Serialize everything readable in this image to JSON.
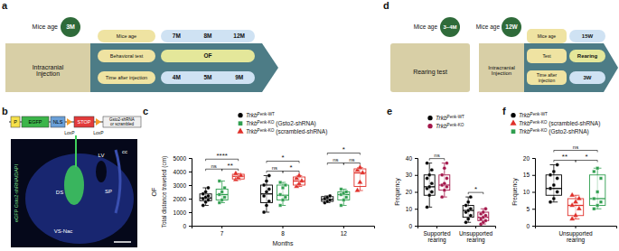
{
  "panel_labels": [
    "a",
    "b",
    "c",
    "d",
    "e",
    "f"
  ],
  "diagrams": {
    "a": {
      "start_label": "Mice age",
      "start_age": "3M",
      "injection": "Intracranial Injection",
      "rows": [
        {
          "label": "Mice age",
          "items": [
            "7M",
            "8M",
            "12M"
          ]
        },
        {
          "label": "Behavioral test",
          "items": [
            "OF"
          ]
        },
        {
          "label": "Time after injection",
          "items": [
            "4M",
            "5M",
            "9M"
          ]
        }
      ]
    },
    "b": {
      "construct": [
        "P",
        "EGFP",
        "NLS",
        "STOP",
        "Gsto2-shRNA or scrambled"
      ],
      "loxp": [
        "LoxP",
        "LoxP"
      ],
      "caption": "eGFP Gsto2-shRNA/DAPI",
      "regions": [
        "DS",
        "LV",
        "cc",
        "SP",
        "VS-Nac"
      ]
    },
    "d": {
      "pre_label": "Mice age",
      "pre_age": "3–4M",
      "pre_test": "Rearing test",
      "start_label": "Mice age",
      "start_age": "12W",
      "injection": "Intracranial Injection",
      "rows": [
        {
          "label": "Mice age",
          "items": [
            "15W"
          ]
        },
        {
          "label": "Test",
          "items": [
            "Rearing"
          ]
        },
        {
          "label": "Time after injection",
          "items": [
            "3W"
          ]
        }
      ]
    }
  },
  "chart_data": [
    {
      "type": "box",
      "title": "OF",
      "x_label": "Months",
      "y_label": "Total distance traveled (cm)",
      "categories": [
        "7",
        "8",
        "12"
      ],
      "ylim": [
        0,
        5000
      ],
      "yticks": [
        0,
        1000,
        2000,
        3000,
        4000,
        5000
      ],
      "legend": "top right",
      "series": [
        {
          "name": "TrkbPenk-WT",
          "color": "#000000",
          "marker": "circle",
          "values": [
            2050,
            2350,
            1950
          ],
          "q1": [
            1850,
            1700,
            1800
          ],
          "q3": [
            2350,
            3000,
            2150
          ],
          "min": [
            1500,
            1000,
            1700
          ],
          "max": [
            2800,
            3700,
            2200
          ],
          "points": [
            [
              1500,
              1750,
              1900,
              2000,
              2100,
              2200,
              2350,
              2500,
              2800
            ],
            [
              1000,
              1500,
              1800,
              2200,
              2500,
              2700,
              3000,
              3300,
              3700
            ],
            [
              1700,
              1800,
              1900,
              2000,
              2100,
              2200
            ]
          ]
        },
        {
          "name": "TrkbPenk-KO (Gsto2-shRNA)",
          "color": "#2f9e4f",
          "marker": "square",
          "values": [
            2300,
            2250,
            2300
          ],
          "q1": [
            1900,
            1900,
            1900
          ],
          "q3": [
            2700,
            3000,
            2500
          ],
          "min": [
            1700,
            1500,
            1500
          ],
          "max": [
            3300,
            3200,
            2700
          ],
          "points": [
            [
              1700,
              1900,
              2100,
              2300,
              2500,
              2800,
              3300
            ],
            [
              1500,
              1900,
              2100,
              2300,
              2800,
              3000,
              3200
            ],
            [
              1500,
              1900,
              2100,
              2300,
              2400,
              2500,
              2700
            ]
          ]
        },
        {
          "name": "TrkbPenk-KO (scrambled-shRNA)",
          "color": "#e0302a",
          "marker": "triangle",
          "values": [
            3650,
            3300,
            3900
          ],
          "q1": [
            3450,
            3000,
            2900
          ],
          "q3": [
            3800,
            3600,
            4200
          ],
          "min": [
            3400,
            2900,
            2600
          ],
          "max": [
            3850,
            3700,
            4300
          ],
          "points": [
            [
              3400,
              3550,
              3700,
              3850
            ],
            [
              2900,
              3100,
              3300,
              3500,
              3700
            ],
            [
              2600,
              3200,
              3900,
              4100,
              4300
            ]
          ]
        }
      ],
      "annotations": [
        {
          "text": "****",
          "category": 0,
          "pair": [
            0,
            2
          ]
        },
        {
          "text": "ns",
          "category": 0,
          "pair": [
            0,
            1
          ]
        },
        {
          "text": "**",
          "category": 0,
          "pair": [
            1,
            2
          ]
        },
        {
          "text": "*",
          "category": 1,
          "pair": [
            0,
            2
          ]
        },
        {
          "text": "ns",
          "category": 1,
          "pair": [
            0,
            1
          ]
        },
        {
          "text": "*",
          "category": 1,
          "pair": [
            1,
            2
          ]
        },
        {
          "text": "*",
          "category": 2,
          "pair": [
            0,
            2
          ]
        },
        {
          "text": "ns",
          "category": 2,
          "pair": [
            0,
            1
          ]
        },
        {
          "text": "ns",
          "category": 2,
          "pair": [
            1,
            2
          ]
        }
      ]
    },
    {
      "type": "box",
      "y_label": "Frequency",
      "categories": [
        "Supported rearing",
        "Unsupported rearing"
      ],
      "ylim": [
        0,
        40
      ],
      "yticks": [
        0,
        10,
        20,
        30,
        40
      ],
      "legend": "top",
      "series": [
        {
          "name": "TrkbPenk-WT",
          "color": "#000000",
          "marker": "circle",
          "values": [
            23,
            9
          ],
          "q1": [
            18,
            5
          ],
          "q3": [
            30,
            12
          ],
          "min": [
            11,
            2
          ],
          "max": [
            37,
            17
          ],
          "points": [
            [
              11,
              18,
              20,
              22,
              23,
              25,
              28,
              30,
              33,
              37
            ],
            [
              2,
              4,
              6,
              8,
              9,
              10,
              12,
              14,
              17
            ]
          ]
        },
        {
          "name": "TrkbPenk-KO",
          "color": "#a3164a",
          "marker": "circle",
          "values": [
            24,
            5
          ],
          "q1": [
            21,
            3
          ],
          "q3": [
            30,
            8
          ],
          "min": [
            17,
            1
          ],
          "max": [
            37,
            10
          ],
          "points": [
            [
              17,
              21,
              23,
              24,
              25,
              28,
              30,
              34,
              37
            ],
            [
              1,
              2,
              3,
              4,
              5,
              6,
              7,
              8,
              10
            ]
          ]
        }
      ],
      "annotations": [
        {
          "text": "ns",
          "category": 0,
          "pair": [
            0,
            1
          ]
        },
        {
          "text": "*",
          "category": 1,
          "pair": [
            0,
            1
          ]
        }
      ]
    },
    {
      "type": "box",
      "y_label": "Frequency",
      "categories": [
        "Unsupported rearing"
      ],
      "ylim": [
        0,
        20
      ],
      "yticks": [
        0,
        5,
        10,
        15,
        20
      ],
      "legend": "top",
      "series": [
        {
          "name": "TrkbPenk-WT",
          "color": "#000000",
          "marker": "circle",
          "values": [
            11
          ],
          "q1": [
            9
          ],
          "q3": [
            15
          ],
          "min": [
            7
          ],
          "max": [
            18
          ],
          "points": [
            [
              7,
              8,
              10,
              11,
              12,
              14,
              15,
              16,
              18
            ]
          ]
        },
        {
          "name": "TrkbPenk-KO (scrambled-shRNA)",
          "color": "#e0302a",
          "marker": "triangle",
          "values": [
            6
          ],
          "q1": [
            3
          ],
          "q3": [
            8
          ],
          "min": [
            2
          ],
          "max": [
            9
          ],
          "points": [
            [
              2,
              3,
              5,
              6,
              7,
              8,
              9
            ]
          ]
        },
        {
          "name": "TrkbPenk-KO (Gsto2-shRNA)",
          "color": "#2f9e4f",
          "marker": "square",
          "values": [
            8
          ],
          "q1": [
            6
          ],
          "q3": [
            15
          ],
          "min": [
            5
          ],
          "max": [
            17
          ],
          "points": [
            [
              5,
              6,
              7,
              8,
              10,
              14,
              16,
              17
            ]
          ]
        }
      ],
      "annotations": [
        {
          "text": "ns",
          "category": 0,
          "pair": [
            0,
            2
          ]
        },
        {
          "text": "**",
          "category": 0,
          "pair": [
            0,
            1
          ]
        },
        {
          "text": "*",
          "category": 0,
          "pair": [
            1,
            2
          ]
        }
      ]
    }
  ]
}
